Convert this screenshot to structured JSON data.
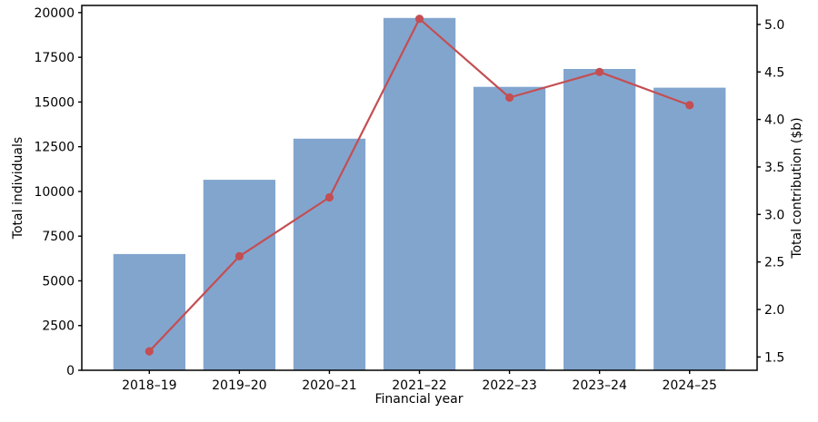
{
  "figure": {
    "background": "#ffffff"
  },
  "chart_data": {
    "type": "combo-bar-line",
    "title": "",
    "categories": [
      "2018–19",
      "2019–20",
      "2020–21",
      "2021–22",
      "2022–23",
      "2023–24",
      "2024–25"
    ],
    "series": [
      {
        "name": "Total individuals",
        "type": "bar",
        "axis": "left",
        "color": "#82a5ce",
        "values": [
          6500,
          10650,
          12950,
          19700,
          15850,
          16850,
          15800
        ]
      },
      {
        "name": "Total contribution ($b)",
        "type": "line",
        "axis": "right",
        "color": "#c44e52",
        "marker": "circle",
        "values": [
          1.56,
          2.56,
          3.18,
          5.06,
          4.23,
          4.5,
          4.15
        ]
      }
    ],
    "xlabel": "Financial year",
    "ylabel_left": "Total individuals",
    "ylabel_right": "Total contribution ($b)",
    "yticks_left": [
      0,
      2500,
      5000,
      7500,
      10000,
      12500,
      15000,
      17500,
      20000
    ],
    "yticks_right": [
      1.5,
      2.0,
      2.5,
      3.0,
      3.5,
      4.0,
      4.5,
      5.0
    ],
    "ylim_left": [
      0,
      20400
    ],
    "ylim_right": [
      1.36,
      5.2
    ],
    "xlim": [
      -0.75,
      6.75
    ],
    "bar_width": 0.8,
    "grid": false,
    "legend": "none",
    "axis_color": "#000000",
    "text_color": "#000000"
  }
}
